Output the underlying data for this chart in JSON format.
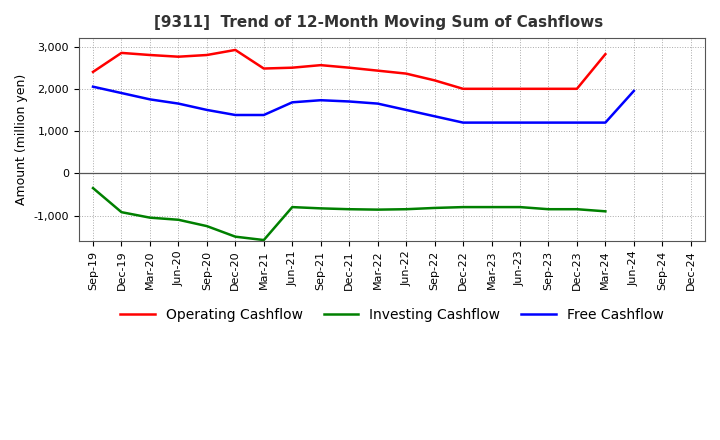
{
  "title": "[9311]  Trend of 12-Month Moving Sum of Cashflows",
  "ylabel": "Amount (million yen)",
  "xlabels": [
    "Sep-19",
    "Dec-19",
    "Mar-20",
    "Jun-20",
    "Sep-20",
    "Dec-20",
    "Mar-21",
    "Jun-21",
    "Sep-21",
    "Dec-21",
    "Mar-22",
    "Jun-22",
    "Sep-22",
    "Dec-22",
    "Mar-23",
    "Jun-23",
    "Sep-23",
    "Dec-23",
    "Mar-24",
    "Jun-24",
    "Sep-24",
    "Dec-24"
  ],
  "operating": [
    2400,
    2850,
    2800,
    2760,
    2800,
    2920,
    2480,
    2500,
    2560,
    2500,
    2430,
    2360,
    2200,
    2000,
    2000,
    2000,
    2000,
    2000,
    2820,
    null,
    null,
    null
  ],
  "investing": [
    -350,
    -920,
    -1050,
    -1100,
    -1250,
    -1500,
    -1580,
    -800,
    -830,
    -850,
    -860,
    -850,
    -820,
    -800,
    -800,
    -800,
    -850,
    -850,
    -900,
    null,
    null,
    null
  ],
  "free": [
    2050,
    1900,
    1750,
    1650,
    1500,
    1380,
    1380,
    1680,
    1730,
    1700,
    1650,
    1500,
    1350,
    1200,
    1200,
    1200,
    1200,
    1200,
    1200,
    1950,
    null,
    null
  ],
  "operating_color": "#ff0000",
  "investing_color": "#008000",
  "free_color": "#0000ff",
  "ylim": [
    -1600,
    3200
  ],
  "yticks": [
    -1000,
    0,
    1000,
    2000,
    3000
  ],
  "bg_color": "#ffffff",
  "grid_color": "#aaaaaa",
  "title_fontsize": 11,
  "axis_fontsize": 9,
  "tick_fontsize": 8,
  "legend_fontsize": 10
}
